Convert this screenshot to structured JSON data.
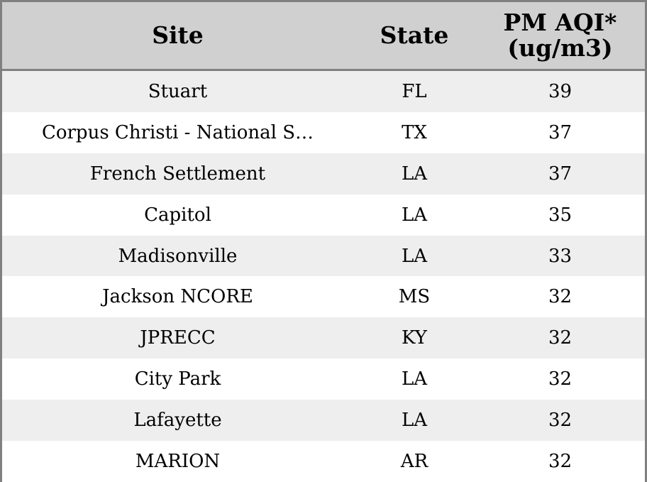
{
  "table": {
    "headers": [
      "Site",
      "State",
      "PM AQI*\n(ug/m3)"
    ],
    "header_lines": {
      "pm_line1": "PM AQI*",
      "pm_line2": "(ug/m3)"
    },
    "rows": [
      [
        "Stuart",
        "FL",
        "39"
      ],
      [
        "Corpus Christi - National S…",
        "TX",
        "37"
      ],
      [
        "French Settlement",
        "LA",
        "37"
      ],
      [
        "Capitol",
        "LA",
        "35"
      ],
      [
        "Madisonville",
        "LA",
        "33"
      ],
      [
        "Jackson NCORE",
        "MS",
        "32"
      ],
      [
        "JPRECC",
        "KY",
        "32"
      ],
      [
        "City Park",
        "LA",
        "32"
      ],
      [
        "Lafayette",
        "LA",
        "32"
      ],
      [
        "MARION",
        "AR",
        "32"
      ]
    ]
  },
  "chart_data": {
    "type": "table",
    "columns": [
      "Site",
      "State",
      "PM AQI* (ug/m3)"
    ],
    "rows": [
      {
        "site": "Stuart",
        "state": "FL",
        "pm_aqi": 39
      },
      {
        "site": "Corpus Christi - National S…",
        "state": "TX",
        "pm_aqi": 37
      },
      {
        "site": "French Settlement",
        "state": "LA",
        "pm_aqi": 37
      },
      {
        "site": "Capitol",
        "state": "LA",
        "pm_aqi": 35
      },
      {
        "site": "Madisonville",
        "state": "LA",
        "pm_aqi": 33
      },
      {
        "site": "Jackson NCORE",
        "state": "MS",
        "pm_aqi": 32
      },
      {
        "site": "JPRECC",
        "state": "KY",
        "pm_aqi": 32
      },
      {
        "site": "City Park",
        "state": "LA",
        "pm_aqi": 32
      },
      {
        "site": "Lafayette",
        "state": "LA",
        "pm_aqi": 32
      },
      {
        "site": "MARION",
        "state": "AR",
        "pm_aqi": 32
      }
    ]
  },
  "colors": {
    "header_bg": "#d0d0d0",
    "row_alt_bg": "#eeeeee",
    "row_bg": "#ffffff",
    "border": "#808080"
  }
}
